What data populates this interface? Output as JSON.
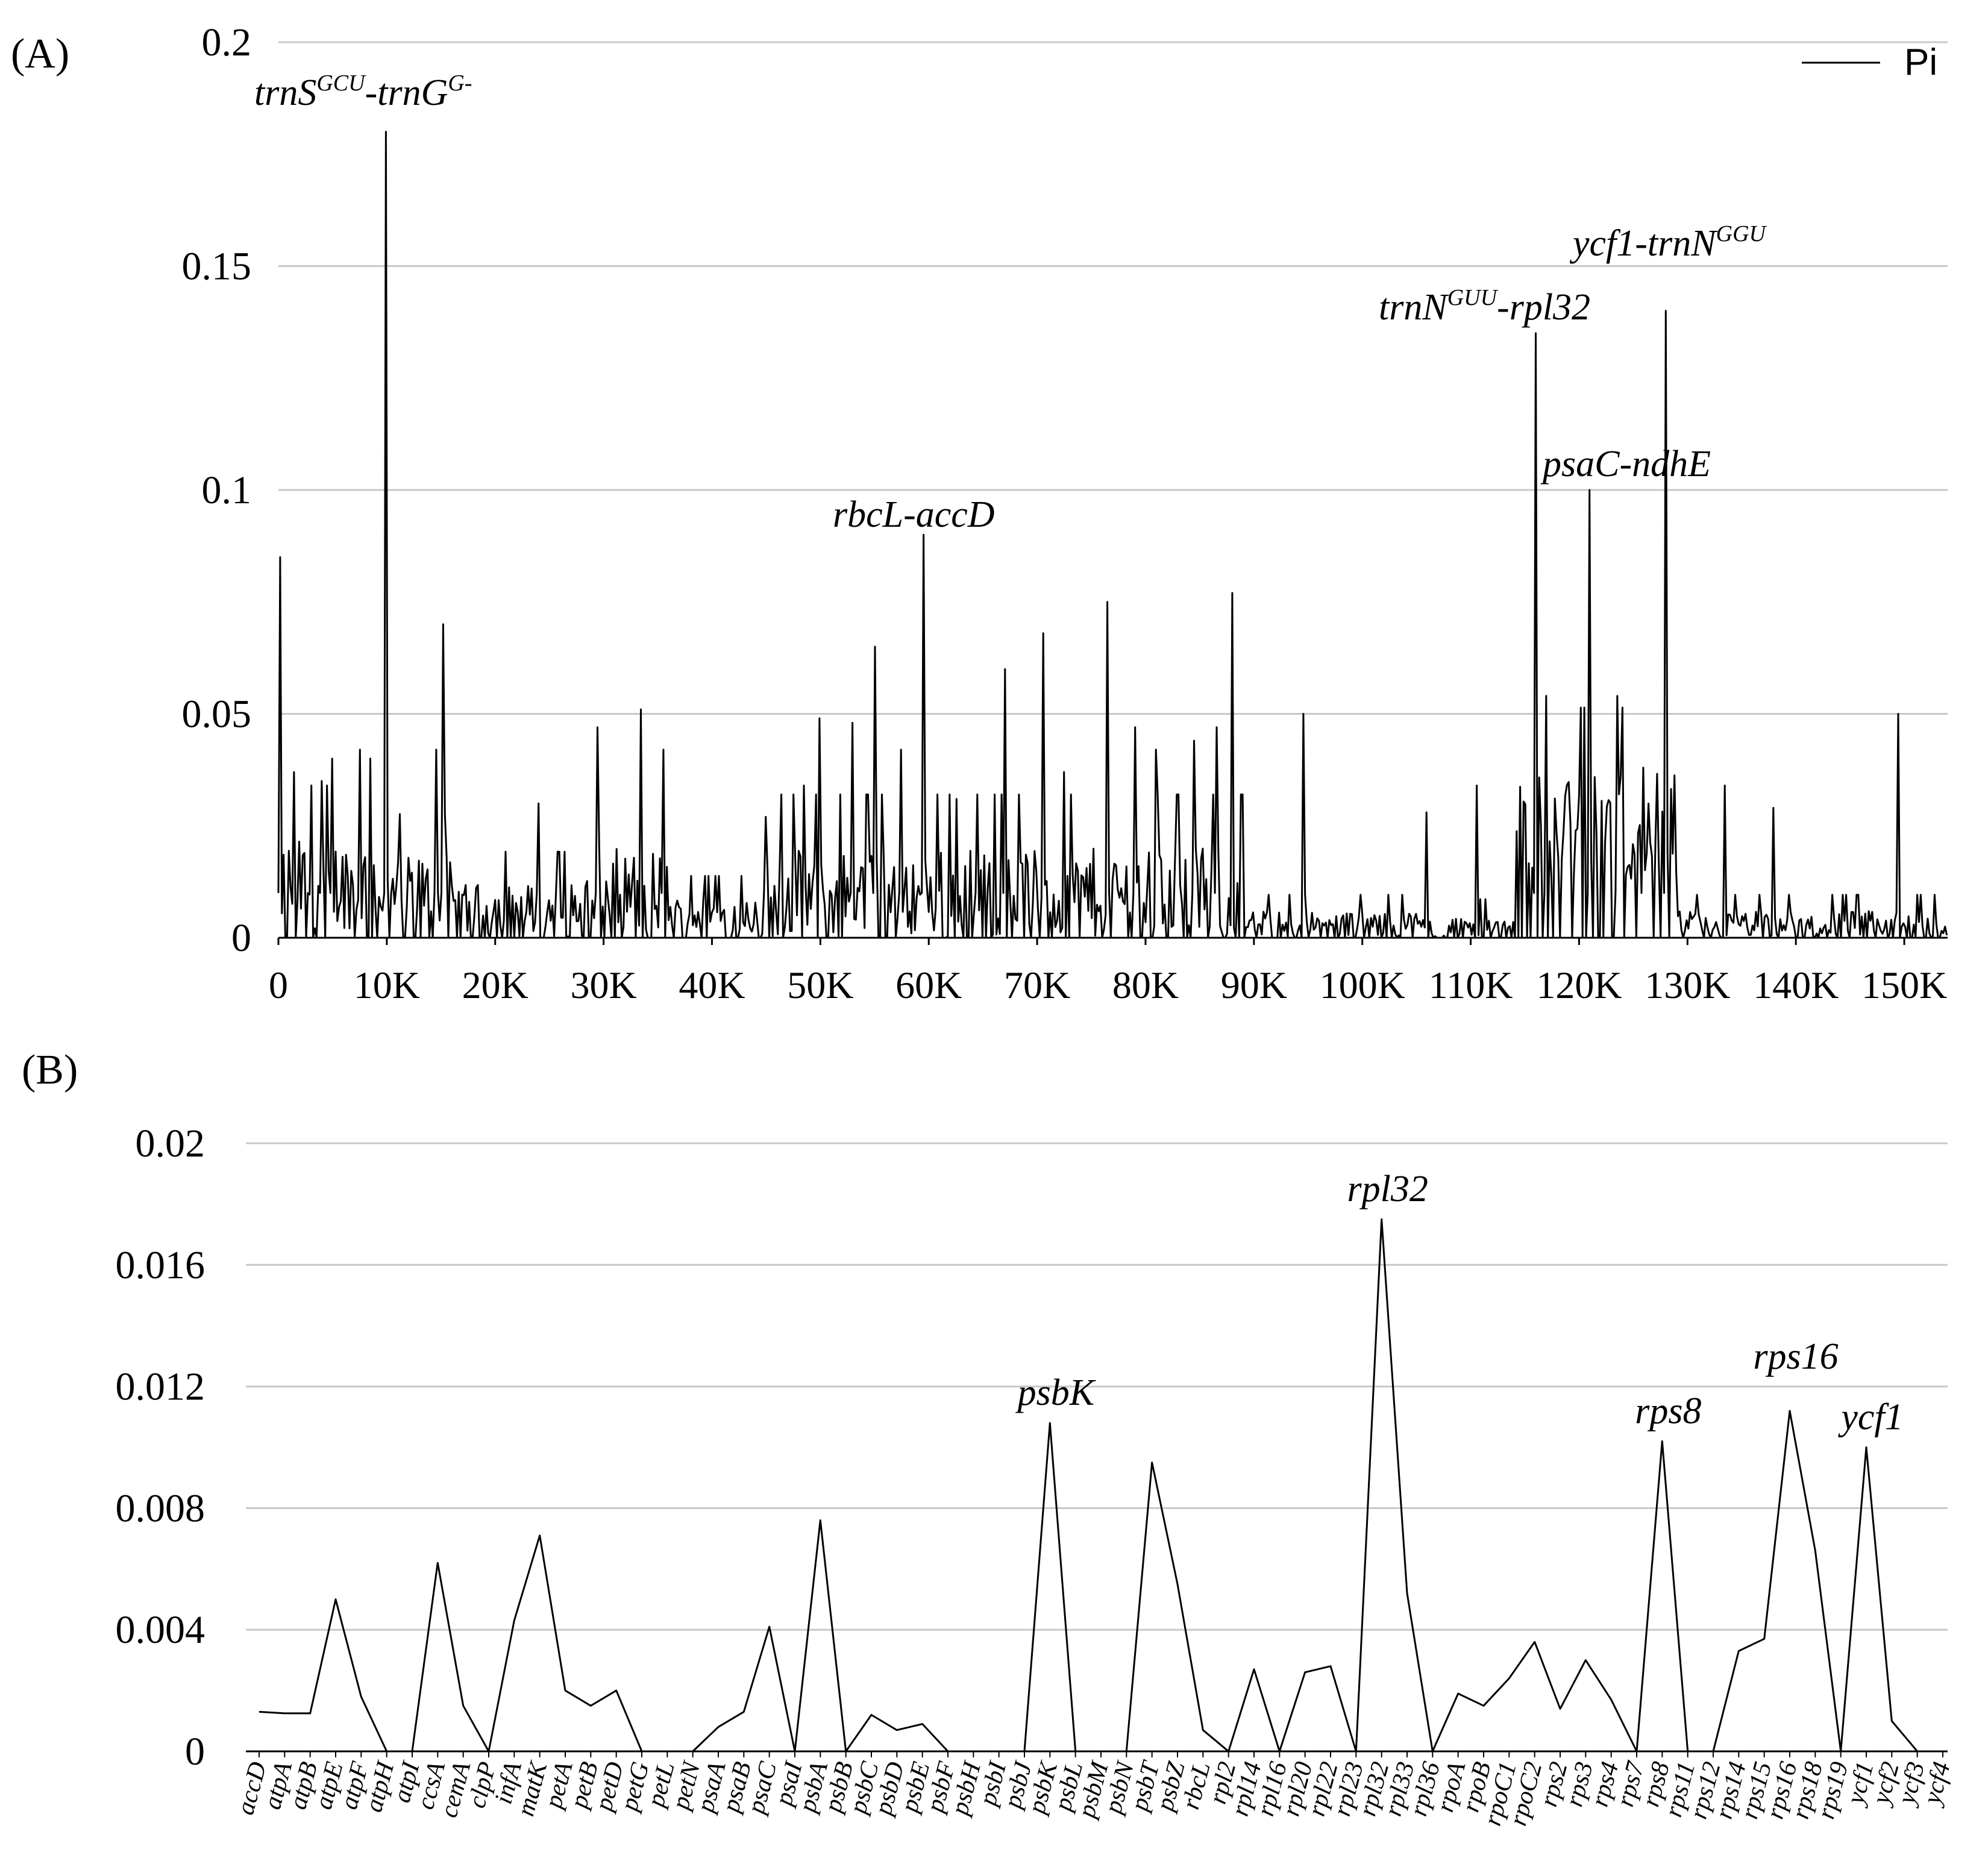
{
  "figure": {
    "panel_a_label": "(A)",
    "panel_b_label": "(B)"
  },
  "chart_data": [
    {
      "type": "line",
      "panel": "(A)",
      "legend": {
        "label": "Pi",
        "placement": "top-right"
      },
      "ylim": [
        0,
        0.2
      ],
      "yticks": [
        "0",
        "0.05",
        "0.1",
        "0.15",
        "0.2"
      ],
      "xlim": [
        0,
        154000
      ],
      "xticks": [
        "0",
        "10K",
        "20K",
        "30K",
        "40K",
        "50K",
        "60K",
        "70K",
        "80K",
        "90K",
        "100K",
        "110K",
        "120K",
        "130K",
        "140K",
        "150K"
      ],
      "grid": true,
      "baseline_segments": [
        {
          "x": [
            0,
            9500
          ],
          "level": 0.012,
          "spread": 0.01
        },
        {
          "x": [
            9500,
            16000
          ],
          "level": 0.01,
          "spread": 0.008
        },
        {
          "x": [
            16000,
            28000
          ],
          "level": 0.006,
          "spread": 0.006
        },
        {
          "x": [
            28000,
            36000
          ],
          "level": 0.01,
          "spread": 0.01
        },
        {
          "x": [
            36000,
            44000
          ],
          "level": 0.005,
          "spread": 0.004
        },
        {
          "x": [
            44000,
            56000
          ],
          "level": 0.01,
          "spread": 0.01
        },
        {
          "x": [
            56000,
            89000
          ],
          "level": 0.01,
          "spread": 0.01
        },
        {
          "x": [
            89000,
            105000
          ],
          "level": 0.003,
          "spread": 0.003
        },
        {
          "x": [
            105000,
            114000
          ],
          "level": 0.002,
          "spread": 0.003
        },
        {
          "x": [
            114000,
            129000
          ],
          "level": 0.025,
          "spread": 0.012
        },
        {
          "x": [
            129000,
            154000
          ],
          "level": 0.003,
          "spread": 0.003
        }
      ],
      "peaks": [
        {
          "x": 200,
          "y": 0.085
        },
        {
          "x": 1500,
          "y": 0.037
        },
        {
          "x": 4000,
          "y": 0.035
        },
        {
          "x": 5000,
          "y": 0.04
        },
        {
          "x": 7500,
          "y": 0.042
        },
        {
          "x": 8500,
          "y": 0.04
        },
        {
          "x": 10000,
          "y": 0.18
        },
        {
          "x": 14500,
          "y": 0.042
        },
        {
          "x": 15200,
          "y": 0.07
        },
        {
          "x": 24000,
          "y": 0.03
        },
        {
          "x": 29500,
          "y": 0.047
        },
        {
          "x": 33500,
          "y": 0.051
        },
        {
          "x": 35500,
          "y": 0.042
        },
        {
          "x": 45000,
          "y": 0.027
        },
        {
          "x": 48500,
          "y": 0.034
        },
        {
          "x": 50000,
          "y": 0.049
        },
        {
          "x": 53000,
          "y": 0.048
        },
        {
          "x": 55000,
          "y": 0.065
        },
        {
          "x": 57500,
          "y": 0.042
        },
        {
          "x": 59500,
          "y": 0.09
        },
        {
          "x": 62500,
          "y": 0.031
        },
        {
          "x": 64500,
          "y": 0.032
        },
        {
          "x": 67000,
          "y": 0.06
        },
        {
          "x": 70500,
          "y": 0.068
        },
        {
          "x": 72500,
          "y": 0.037
        },
        {
          "x": 76500,
          "y": 0.075
        },
        {
          "x": 79000,
          "y": 0.047
        },
        {
          "x": 81000,
          "y": 0.042
        },
        {
          "x": 84500,
          "y": 0.044
        },
        {
          "x": 86500,
          "y": 0.047
        },
        {
          "x": 88000,
          "y": 0.077
        },
        {
          "x": 94500,
          "y": 0.05
        },
        {
          "x": 106000,
          "y": 0.028
        },
        {
          "x": 110500,
          "y": 0.034
        },
        {
          "x": 116000,
          "y": 0.135
        },
        {
          "x": 117000,
          "y": 0.054
        },
        {
          "x": 121000,
          "y": 0.1
        },
        {
          "x": 123500,
          "y": 0.054
        },
        {
          "x": 126000,
          "y": 0.038
        },
        {
          "x": 128000,
          "y": 0.14
        },
        {
          "x": 133500,
          "y": 0.034
        },
        {
          "x": 138000,
          "y": 0.029
        },
        {
          "x": 149500,
          "y": 0.05
        }
      ],
      "annotations": [
        {
          "base": "trnS",
          "sup": "GCU",
          "mid": "-trnG",
          "sup2": "G-",
          "tail": ""
        },
        {
          "base": "rbcL-accD",
          "sup": "",
          "mid": "",
          "sup2": "",
          "tail": ""
        },
        {
          "base": "trnN",
          "sup": "GUU",
          "mid": "-rpl32",
          "sup2": "",
          "tail": ""
        },
        {
          "base": "psaC-ndhE",
          "sup": "",
          "mid": "",
          "sup2": "",
          "tail": ""
        },
        {
          "base": "ycf1-trnN",
          "sup": "GGU",
          "mid": "",
          "sup2": "",
          "tail": ""
        }
      ]
    },
    {
      "type": "line",
      "panel": "(B)",
      "ylim": [
        0,
        0.02
      ],
      "yticks": [
        "0",
        "0.004",
        "0.008",
        "0.012",
        "0.016",
        "0.02"
      ],
      "grid": true,
      "categories": [
        "accD",
        "atpA",
        "atpB",
        "atpE",
        "atpF",
        "atpH",
        "atpI",
        "ccsA",
        "cemA",
        "clpP",
        "infA",
        "matK",
        "petA",
        "petB",
        "petD",
        "petG",
        "petL",
        "petN",
        "psaA",
        "psaB",
        "psaC",
        "psaI",
        "psbA",
        "psbB",
        "psbC",
        "psbD",
        "psbE",
        "psbF",
        "psbH",
        "psbI",
        "psbJ",
        "psbK",
        "psbL",
        "psbM",
        "psbN",
        "psbT",
        "psbZ",
        "rbcL",
        "rpl2",
        "rpl14",
        "rpl16",
        "rpl20",
        "rpl22",
        "rpl23",
        "rpl32",
        "rpl33",
        "rpl36",
        "rpoA",
        "rpoB",
        "rpoC1",
        "rpoC2",
        "rps2",
        "rps3",
        "rps4",
        "rps7",
        "rps8",
        "rps11",
        "rps12",
        "rps14",
        "rps15",
        "rps16",
        "rps18",
        "rps19",
        "ycf1",
        "ycf2",
        "ycf3",
        "ycf4"
      ],
      "values": [
        0.0013,
        0.00125,
        0.00125,
        0.005,
        0.0018,
        0,
        0,
        0.0062,
        0.0015,
        0,
        0.0043,
        0.0071,
        0.002,
        0.0015,
        0.002,
        0,
        0,
        0,
        0.0008,
        0.0013,
        0.0041,
        0,
        0.0076,
        0,
        0.0012,
        0.0007,
        0.0009,
        0,
        0,
        0,
        0,
        0.0108,
        0,
        0,
        0,
        0.0095,
        0.0055,
        0.0007,
        0,
        0.0027,
        0,
        0.0026,
        0.0028,
        0,
        0.0175,
        0.0052,
        0,
        0.0019,
        0.0015,
        0.0024,
        0.0036,
        0.0014,
        0.003,
        0.0017,
        0,
        0.0102,
        0,
        0,
        0.0033,
        0.0037,
        0.0112,
        0.0066,
        0,
        0.01,
        0.001,
        0,
        0
      ],
      "annotations": [
        {
          "gene": "psbK",
          "label": "psbK"
        },
        {
          "gene": "rpl32",
          "label": "rpl32"
        },
        {
          "gene": "rps8",
          "label": "rps8"
        },
        {
          "gene": "rps16",
          "label": "rps16"
        },
        {
          "gene": "ycf1",
          "label": "ycf1"
        }
      ]
    }
  ]
}
